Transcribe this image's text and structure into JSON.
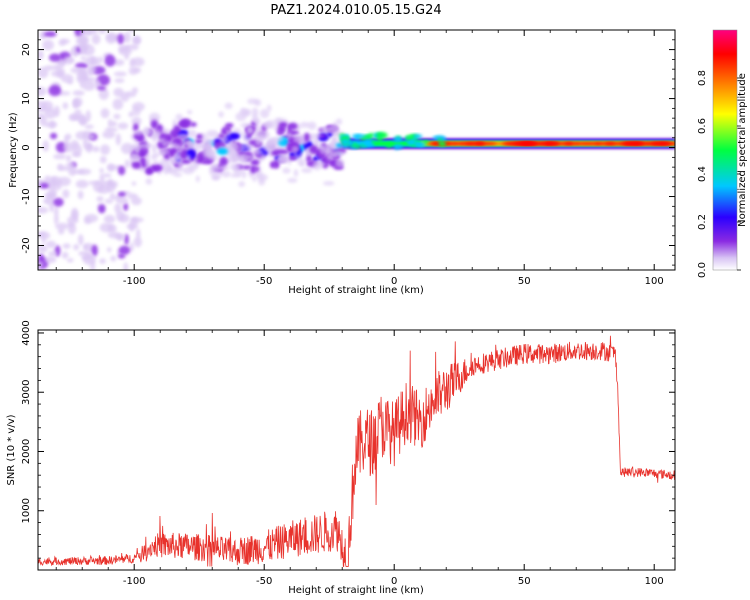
{
  "figure_title": "PAZ1.2024.010.05.15.G24",
  "chart_data": [
    {
      "type": "heatmap",
      "title": "PAZ1.2024.010.05.15.G24",
      "xlabel": "Height of straight line (km)",
      "ylabel": "Frequency (Hz)",
      "xlim": [
        -137,
        108
      ],
      "ylim": [
        -25,
        24
      ],
      "xticks": [
        -100,
        -50,
        0,
        50,
        100
      ],
      "yticks": [
        -20,
        -10,
        0,
        10,
        20
      ],
      "colorbar": {
        "label": "Normalized spectral amplitude",
        "range": [
          0.0,
          1.0
        ],
        "ticks": [
          "0.0",
          "0.2",
          "0.4",
          "0.6",
          "0.8"
        ],
        "colors": [
          "#ffffff",
          "#d8c4f4",
          "#8a2be2",
          "#2b00ff",
          "#00c8ff",
          "#00ff40",
          "#ffff00",
          "#ff7a00",
          "#ff0000",
          "#ff0080"
        ]
      },
      "features": {
        "diffuse_noise_range_x": [
          -137,
          -98
        ],
        "clustered_blobs_range_x": [
          -100,
          -20
        ],
        "signal_line_onset_x": -20,
        "signal_line_frequency": 0.8,
        "signal_line_peak_range_x": [
          15,
          108
        ]
      }
    },
    {
      "type": "line",
      "xlabel": "Height of straight line (km)",
      "ylabel": "SNR (10 * v/v)",
      "xlim": [
        -137,
        108
      ],
      "ylim": [
        0,
        4050
      ],
      "xticks": [
        -100,
        -50,
        0,
        50,
        100
      ],
      "yticks": [
        1000,
        2000,
        3000,
        4000
      ],
      "color": "#e8322c",
      "trend": {
        "x": [
          -137,
          -110,
          -100,
          -92,
          -80,
          -70,
          -62,
          -50,
          -40,
          -30,
          -22,
          -18,
          -15,
          -12,
          -8,
          -5,
          0,
          5,
          10,
          15,
          20,
          25,
          30,
          40,
          50,
          60,
          70,
          80,
          85,
          86,
          87,
          95,
          108
        ],
        "y": [
          140,
          160,
          200,
          420,
          400,
          360,
          300,
          380,
          520,
          600,
          700,
          150,
          1900,
          2200,
          2150,
          2450,
          2300,
          2700,
          2500,
          2850,
          3050,
          3250,
          3450,
          3550,
          3650,
          3650,
          3700,
          3700,
          3650,
          3100,
          1650,
          1650,
          1600
        ]
      },
      "noise": {
        "x": [
          -137,
          -100,
          -90,
          -60,
          -20,
          -15,
          0,
          20,
          30,
          85,
          87,
          108
        ],
        "amplitude": [
          60,
          80,
          220,
          240,
          380,
          600,
          550,
          420,
          180,
          160,
          80,
          80
        ]
      }
    }
  ]
}
